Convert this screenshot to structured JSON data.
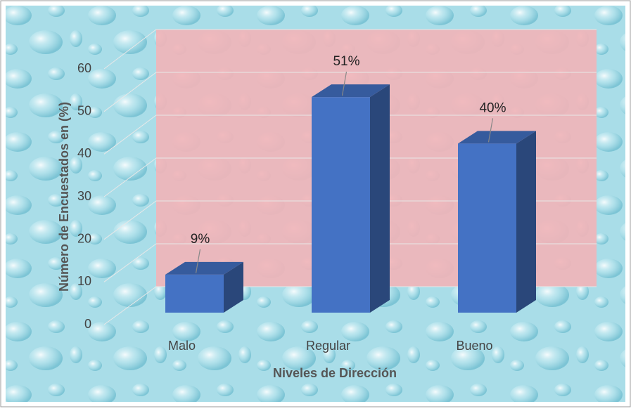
{
  "chart_data": {
    "type": "bar3d",
    "categories": [
      "Malo",
      "Regular",
      "Bueno"
    ],
    "values": [
      9,
      51,
      40
    ],
    "value_labels": [
      "9%",
      "51%",
      "40%"
    ],
    "color": "#4472c4",
    "ylim": [
      0,
      60
    ],
    "yticks": [
      0,
      10,
      20,
      30,
      40,
      50,
      60
    ],
    "grid": true,
    "ylabel": "Número de Encuestados  en (%)",
    "xlabel": "Niveles de Dirección"
  }
}
